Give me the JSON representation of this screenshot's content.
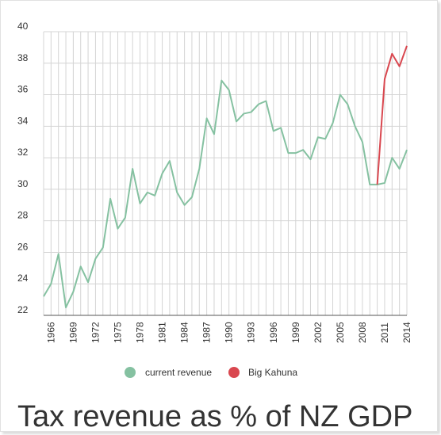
{
  "chart_data": {
    "type": "line",
    "title": "Tax revenue as % of NZ GDP",
    "xlabel": "",
    "ylabel": "",
    "xlim": [
      1965,
      2014
    ],
    "ylim": [
      22,
      40
    ],
    "yticks": [
      22,
      24,
      26,
      28,
      30,
      32,
      34,
      36,
      38,
      40
    ],
    "xticks": [
      1966,
      1969,
      1972,
      1975,
      1978,
      1981,
      1984,
      1987,
      1990,
      1993,
      1996,
      1999,
      2002,
      2005,
      2008,
      2011,
      2014
    ],
    "grid": true,
    "legend_position": "bottom",
    "series": [
      {
        "name": "current revenue",
        "color": "#85c1a1",
        "x": [
          1965,
          1966,
          1967,
          1968,
          1969,
          1970,
          1971,
          1972,
          1973,
          1974,
          1975,
          1976,
          1977,
          1978,
          1979,
          1980,
          1981,
          1982,
          1983,
          1984,
          1985,
          1986,
          1987,
          1988,
          1989,
          1990,
          1991,
          1992,
          1993,
          1994,
          1995,
          1996,
          1997,
          1998,
          1999,
          2000,
          2001,
          2002,
          2003,
          2004,
          2005,
          2006,
          2007,
          2008,
          2009,
          2010,
          2011,
          2012,
          2013,
          2014
        ],
        "y": [
          23.2,
          24.0,
          25.9,
          22.5,
          23.5,
          25.1,
          24.1,
          25.6,
          26.3,
          29.4,
          27.5,
          28.2,
          31.3,
          29.1,
          29.8,
          29.6,
          31.0,
          31.8,
          29.8,
          29.0,
          29.5,
          31.3,
          34.5,
          33.5,
          36.9,
          36.3,
          34.3,
          34.8,
          34.9,
          35.4,
          35.6,
          33.7,
          33.9,
          32.3,
          32.3,
          32.5,
          31.9,
          33.3,
          33.2,
          34.2,
          36.0,
          35.4,
          34.0,
          33.0,
          30.3,
          30.3,
          30.4,
          32.0,
          31.3,
          32.5
        ]
      },
      {
        "name": "Big Kahuna",
        "color": "#d9474f",
        "x": [
          2010,
          2011,
          2012,
          2013,
          2014
        ],
        "y": [
          30.3,
          37.0,
          38.6,
          37.8,
          39.1
        ]
      }
    ]
  }
}
